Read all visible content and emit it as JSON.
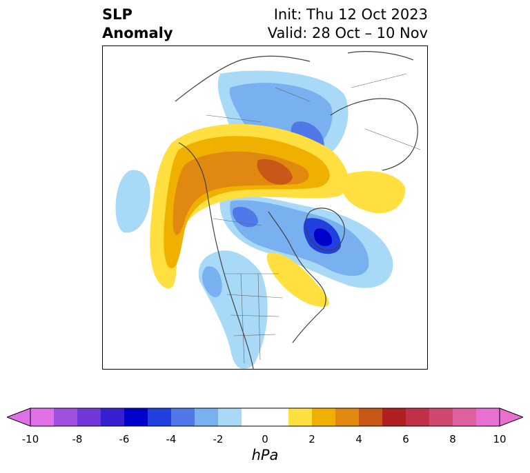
{
  "header": {
    "title_line1": "SLP",
    "title_line2": "Anomaly",
    "init_text": "Init: Thu 12 Oct 2023",
    "valid_text": "Valid: 28 Oct – 10 Nov"
  },
  "map": {
    "variable": "Sea Level Pressure Anomaly",
    "projection": "north-polar",
    "region": "Northern Hemisphere (North America / Arctic)"
  },
  "colorbar": {
    "unit": "hPa",
    "min": -10,
    "max": 10,
    "ticks": [
      "-10",
      "-8",
      "-6",
      "-4",
      "-2",
      "0",
      "2",
      "4",
      "6",
      "8",
      "10"
    ],
    "colors": [
      "#e070e8",
      "#a050e0",
      "#7038d8",
      "#3820d0",
      "#0000c8",
      "#2040e0",
      "#5078e8",
      "#78b0f0",
      "#a8daf8",
      "#ffffff",
      "#ffffff",
      "#ffe040",
      "#f0b000",
      "#e08810",
      "#c85818",
      "#b02020",
      "#c03048",
      "#d04870",
      "#e060a0",
      "#e870d0"
    ]
  }
}
